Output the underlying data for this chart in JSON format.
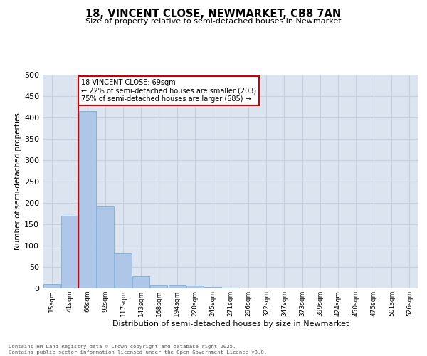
{
  "title1": "18, VINCENT CLOSE, NEWMARKET, CB8 7AN",
  "title2": "Size of property relative to semi-detached houses in Newmarket",
  "xlabel": "Distribution of semi-detached houses by size in Newmarket",
  "ylabel": "Number of semi-detached properties",
  "categories": [
    "15sqm",
    "41sqm",
    "66sqm",
    "92sqm",
    "117sqm",
    "143sqm",
    "168sqm",
    "194sqm",
    "220sqm",
    "245sqm",
    "271sqm",
    "296sqm",
    "322sqm",
    "347sqm",
    "373sqm",
    "399sqm",
    "424sqm",
    "450sqm",
    "475sqm",
    "501sqm",
    "526sqm"
  ],
  "values": [
    10,
    170,
    415,
    192,
    82,
    28,
    9,
    9,
    6,
    3,
    1,
    0,
    0,
    0,
    0,
    0,
    0,
    0,
    0,
    0,
    0
  ],
  "bar_color": "#aec6e8",
  "bar_edge_color": "#7aafd4",
  "grid_color": "#c8d0df",
  "bg_color": "#dce4f0",
  "vline_color": "#cc0000",
  "vline_x_index": 1.5,
  "annotation_text": "18 VINCENT CLOSE: 69sqm\n← 22% of semi-detached houses are smaller (203)\n75% of semi-detached houses are larger (685) →",
  "annotation_box_facecolor": "#ffffff",
  "annotation_box_edgecolor": "#cc0000",
  "footer1": "Contains HM Land Registry data © Crown copyright and database right 2025.",
  "footer2": "Contains public sector information licensed under the Open Government Licence v3.0.",
  "ylim": [
    0,
    500
  ],
  "yticks": [
    0,
    50,
    100,
    150,
    200,
    250,
    300,
    350,
    400,
    450,
    500
  ]
}
